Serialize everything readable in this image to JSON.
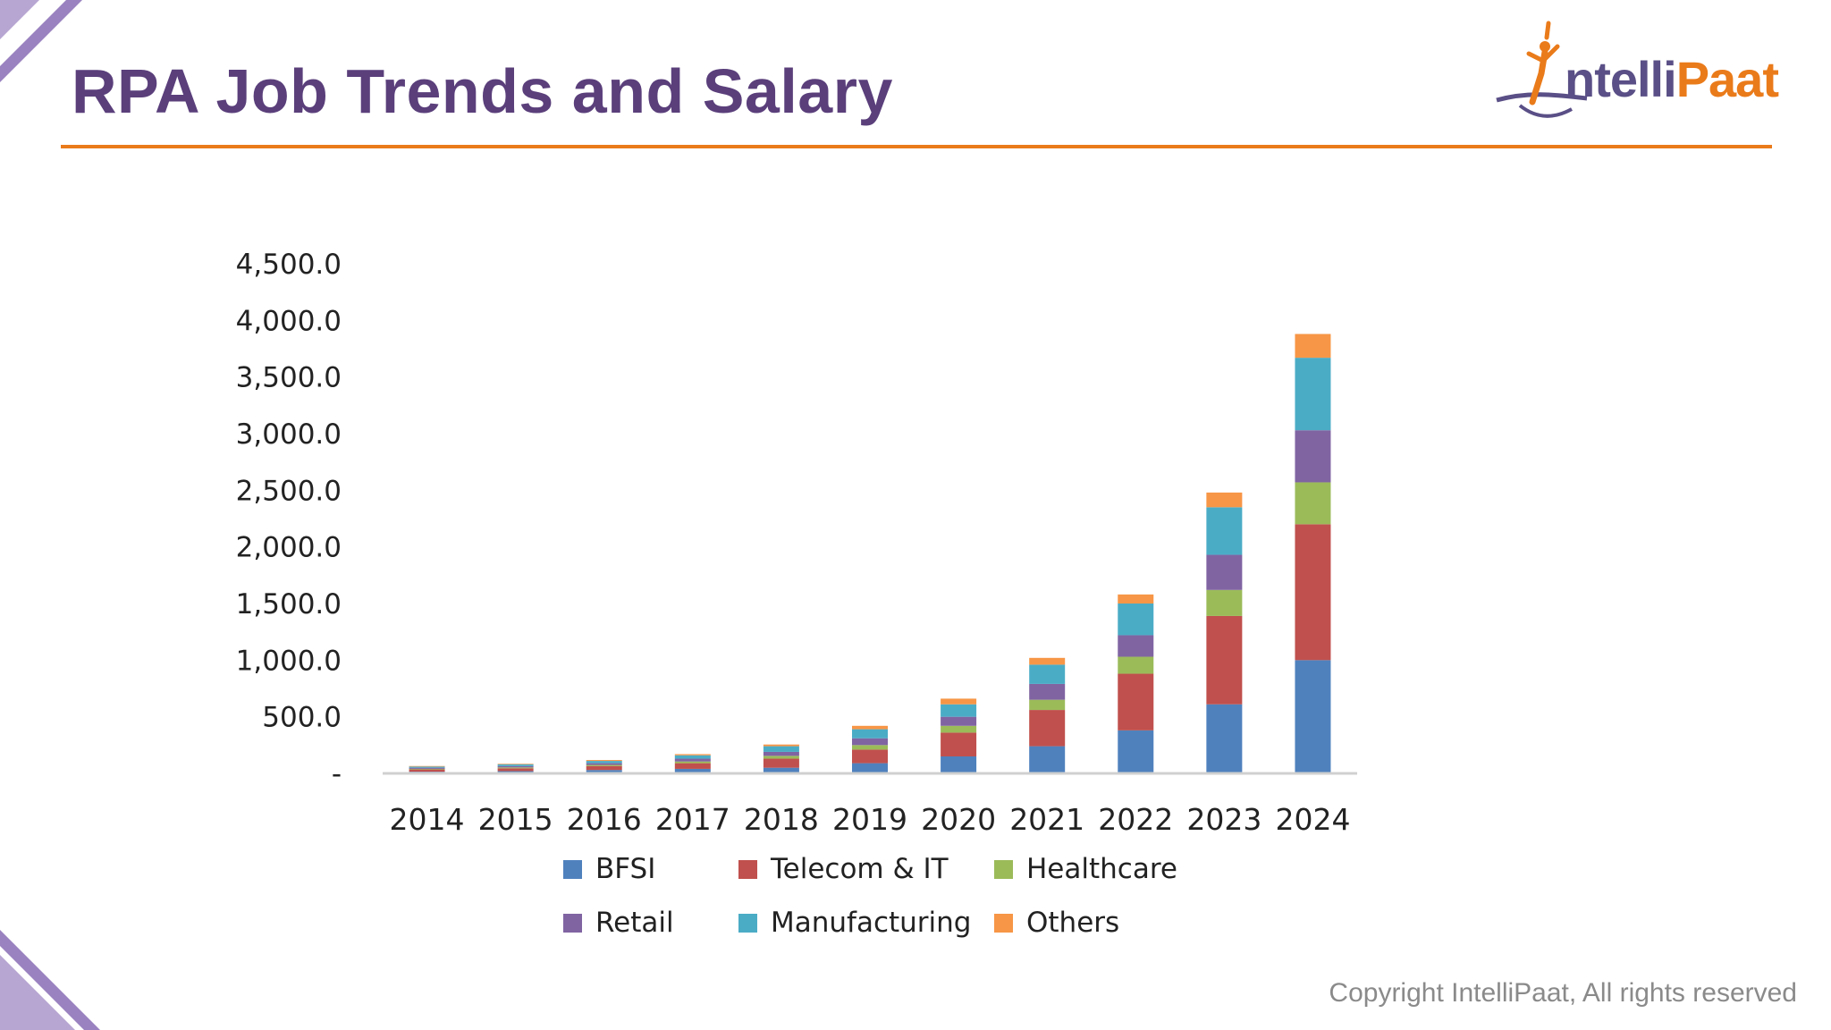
{
  "slide": {
    "title": "RPA Job Trends and Salary",
    "copyright": "Copyright IntelliPaat, All rights reserved"
  },
  "logo": {
    "name": "IntelliPaat",
    "icon": "person-figure-icon"
  },
  "colors": {
    "title": "#5a3f7b",
    "rule": "#ea7b1a",
    "BFSI": "#4f81bd",
    "Telecom & IT": "#c0504d",
    "Healthcare": "#9bbb59",
    "Retail": "#8064a2",
    "Manufacturing": "#4bacc6",
    "Others": "#f79646"
  },
  "chart_data": {
    "type": "bar",
    "stacked": true,
    "title": "",
    "xlabel": "",
    "ylabel": "",
    "ylim": [
      0,
      4500
    ],
    "yticks": [
      0,
      500,
      1000,
      1500,
      2000,
      2500,
      3000,
      3500,
      4000,
      4500
    ],
    "ytick_labels": [
      "-",
      "500.0",
      "1,000.0",
      "1,500.0",
      "2,000.0",
      "2,500.0",
      "3,000.0",
      "3,500.0",
      "4,000.0",
      "4,500.0"
    ],
    "categories": [
      "2014",
      "2015",
      "2016",
      "2017",
      "2018",
      "2019",
      "2020",
      "2021",
      "2022",
      "2023",
      "2024"
    ],
    "series": [
      {
        "name": "BFSI",
        "values": [
          15,
          20,
          30,
          40,
          50,
          90,
          150,
          240,
          380,
          610,
          1000
        ]
      },
      {
        "name": "Telecom & IT",
        "values": [
          20,
          25,
          35,
          50,
          80,
          120,
          210,
          320,
          500,
          780,
          1200
        ]
      },
      {
        "name": "Healthcare",
        "values": [
          5,
          8,
          10,
          15,
          25,
          40,
          60,
          90,
          150,
          230,
          370
        ]
      },
      {
        "name": "Retail",
        "values": [
          10,
          12,
          15,
          25,
          35,
          60,
          80,
          140,
          190,
          310,
          460
        ]
      },
      {
        "name": "Manufacturing",
        "values": [
          10,
          15,
          20,
          30,
          50,
          80,
          110,
          170,
          280,
          420,
          640
        ]
      },
      {
        "name": "Others",
        "values": [
          5,
          5,
          8,
          10,
          15,
          30,
          50,
          60,
          80,
          130,
          210
        ]
      }
    ],
    "legend": {
      "position": "bottom",
      "entries": [
        "BFSI",
        "Telecom & IT",
        "Healthcare",
        "Retail",
        "Manufacturing",
        "Others"
      ]
    },
    "grid": false
  }
}
